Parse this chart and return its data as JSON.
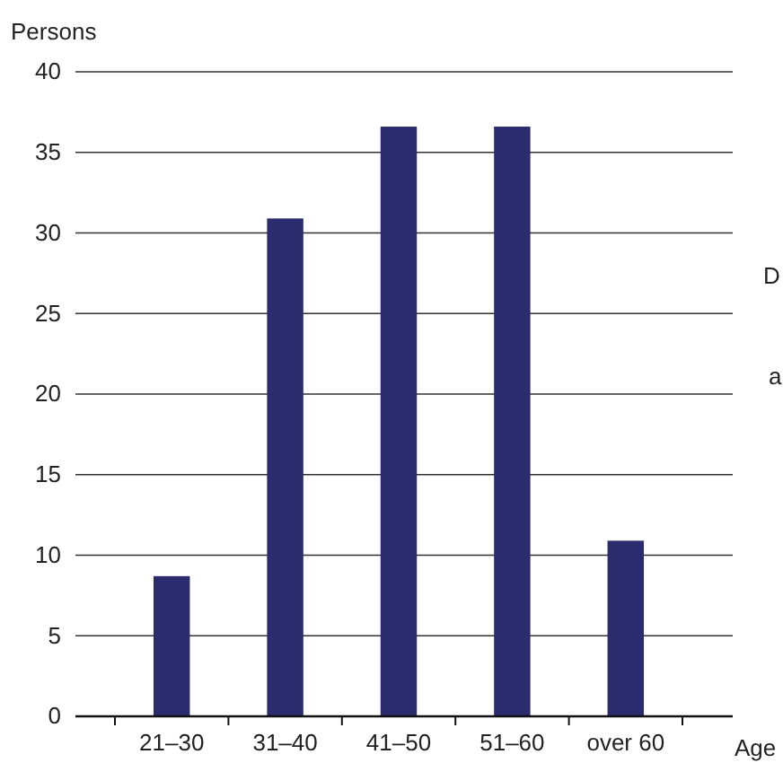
{
  "chart_data": {
    "type": "bar",
    "xlabel": "Age",
    "ylabel": "Persons",
    "categories": [
      "21–30",
      "31–40",
      "41–50",
      "51–60",
      "over 60"
    ],
    "values": [
      8.7,
      30.9,
      36.6,
      36.6,
      10.9
    ],
    "color": "#2b2c6e",
    "ylim": [
      0,
      40
    ],
    "yticks": [
      0,
      5,
      10,
      15,
      20,
      25,
      30,
      35,
      40
    ],
    "grid": "y",
    "annotations": [
      "D",
      "a"
    ]
  }
}
